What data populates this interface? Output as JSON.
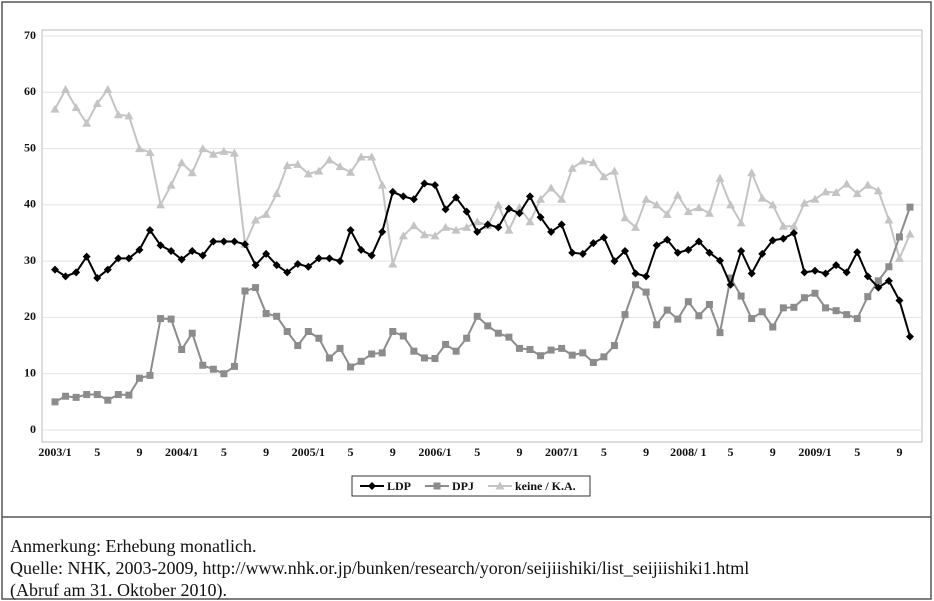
{
  "chart_data": {
    "type": "line",
    "categories": [
      "2003/1",
      null,
      null,
      null,
      "5",
      null,
      null,
      null,
      "9",
      null,
      null,
      null,
      "2004/1",
      null,
      null,
      null,
      "5",
      null,
      null,
      null,
      "9",
      null,
      null,
      null,
      "2005/1",
      null,
      null,
      null,
      "5",
      null,
      null,
      null,
      "9",
      null,
      null,
      null,
      "2006/1",
      null,
      null,
      null,
      "5",
      null,
      null,
      null,
      "9",
      null,
      null,
      null,
      "2007/1",
      null,
      null,
      null,
      "5",
      null,
      null,
      null,
      "9",
      null,
      null,
      null,
      "2008/ 1",
      null,
      null,
      null,
      "5",
      null,
      null,
      null,
      "9",
      null,
      null,
      null,
      "2009/1",
      null,
      null,
      null,
      "5",
      null,
      null,
      null,
      "9",
      null
    ],
    "series": [
      {
        "name": "LDP",
        "color": "#000000",
        "marker": "diamond",
        "values": [
          28.5,
          27.3,
          28,
          30.8,
          27,
          28.5,
          30.5,
          30.5,
          32,
          35.5,
          32.8,
          31.8,
          30.3,
          31.8,
          31,
          33.5,
          33.5,
          33.5,
          33,
          29.3,
          31.3,
          29.3,
          28,
          29.5,
          29,
          30.5,
          30.5,
          30,
          35.5,
          32,
          31,
          35.2,
          42.3,
          41.5,
          41,
          43.8,
          43.5,
          39.2,
          41.3,
          38.8,
          35.2,
          36.5,
          36,
          39.3,
          38.5,
          41.5,
          37.8,
          35.2,
          36.5,
          31.5,
          31.3,
          33.2,
          34.2,
          30,
          31.8,
          27.8,
          27.3,
          32.8,
          33.8,
          31.5,
          32,
          33.5,
          31.5,
          30.1,
          25.8,
          31.8,
          27.8,
          31.3,
          33.7,
          34,
          35,
          28,
          28.3,
          27.8,
          29.3,
          28,
          31.6,
          27.3,
          25.3,
          26.5,
          23,
          16.6
        ]
      },
      {
        "name": "DPJ",
        "color": "#8c8c8c",
        "marker": "square",
        "values": [
          5,
          6,
          5.8,
          6.3,
          6.3,
          5.3,
          6.3,
          6.2,
          9.2,
          9.7,
          19.8,
          19.7,
          14.3,
          17.2,
          11.5,
          10.8,
          10,
          11.3,
          24.7,
          25.3,
          20.7,
          20.2,
          17.5,
          15,
          17.5,
          16.3,
          12.8,
          14.5,
          11.2,
          12.2,
          13.5,
          13.7,
          17.5,
          16.7,
          14,
          12.8,
          12.7,
          15.2,
          14,
          16.3,
          20.2,
          18.5,
          17.2,
          16.5,
          14.5,
          14.3,
          13.2,
          14.2,
          14.5,
          13.3,
          13.7,
          12,
          13,
          15,
          20.5,
          25.8,
          24.5,
          18.7,
          21.3,
          19.7,
          22.8,
          20.3,
          22.3,
          17.3,
          27,
          23.8,
          19.8,
          21,
          18.3,
          21.7,
          21.8,
          23.5,
          24.3,
          21.7,
          21.2,
          20.5,
          19.8,
          23.7,
          26.5,
          29,
          34.3,
          39.6
        ]
      },
      {
        "name": "keine / K.A.",
        "color": "#c4c4c4",
        "marker": "triangle",
        "values": [
          57,
          60.5,
          57.3,
          54.5,
          58,
          60.5,
          56,
          55.8,
          50,
          49.3,
          40,
          43.5,
          47.5,
          45.7,
          50,
          49,
          49.5,
          49.2,
          33,
          37.3,
          38.3,
          42,
          47,
          47.2,
          45.5,
          46,
          48,
          46.8,
          45.8,
          48.5,
          48.5,
          43.5,
          29.5,
          34.5,
          36.3,
          34.7,
          34.5,
          36,
          35.5,
          36,
          37,
          36.3,
          40,
          35.5,
          39.5,
          37,
          41,
          43,
          41,
          46.5,
          47.8,
          47.5,
          45,
          46,
          37.7,
          36,
          41,
          40,
          38.3,
          41.7,
          38.8,
          39.5,
          38.5,
          44.7,
          40,
          36.8,
          45.7,
          41.2,
          40,
          36.2,
          36.2,
          40.3,
          41,
          42.3,
          42.2,
          43.7,
          42,
          43.5,
          42.5,
          37.3,
          30.5,
          34.8
        ]
      }
    ],
    "ylim": [
      0,
      70
    ],
    "yticks": [
      0,
      10,
      20,
      30,
      40,
      50,
      60,
      70
    ],
    "grid": true,
    "legend": "bottom"
  },
  "notes": [
    "Anmerkung: Erhebung monatlich.",
    "Quelle: NHK, 2003-2009, http://www.nhk.or.jp/bunken/research/yoron/seijiishiki/list_seijiishiki1.html",
    "(Abruf am 31. Oktober 2010)."
  ]
}
